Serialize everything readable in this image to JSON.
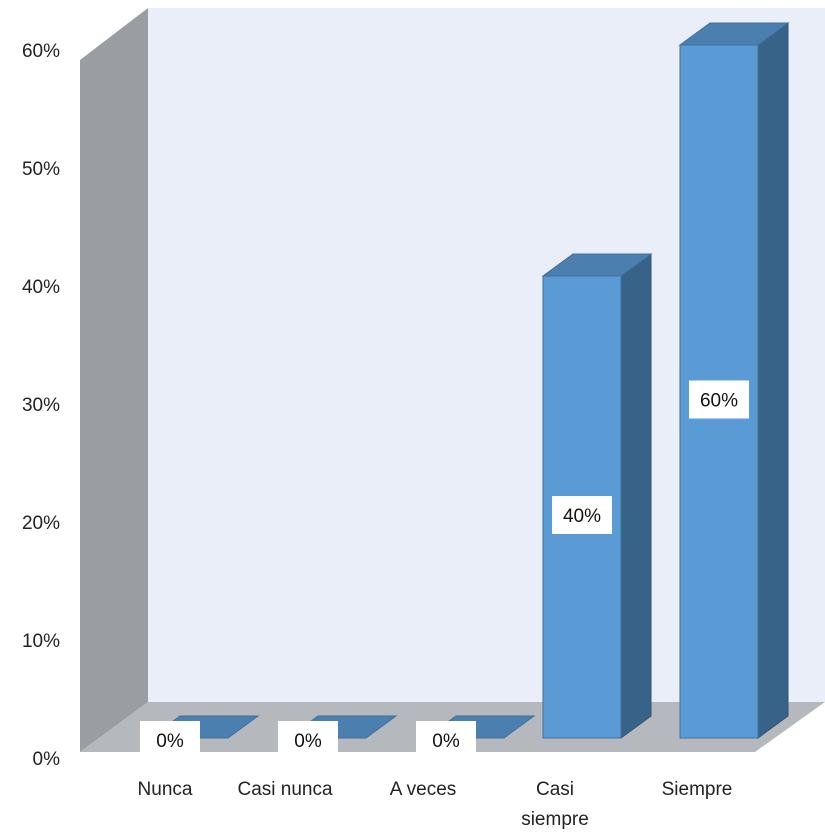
{
  "chart_data": {
    "type": "bar",
    "style": "3d-column",
    "categories": [
      "Nunca",
      "Casi nunca",
      "A veces",
      "Casi siempre",
      "Siempre"
    ],
    "category_lines": [
      [
        "Nunca"
      ],
      [
        "Casi nunca"
      ],
      [
        "A veces"
      ],
      [
        "Casi",
        "siempre"
      ],
      [
        "Siempre"
      ]
    ],
    "values": [
      0,
      0,
      0,
      40,
      60
    ],
    "data_labels": [
      "0%",
      "0%",
      "0%",
      "40%",
      "60%"
    ],
    "y_ticks": [
      "0%",
      "10%",
      "20%",
      "30%",
      "40%",
      "50%",
      "60%"
    ],
    "ylim": [
      0,
      60
    ],
    "grid": false,
    "legend": "none",
    "title": "",
    "xlabel": "",
    "ylabel": "",
    "colors": {
      "bar_front": "#5b9bd5",
      "bar_side": "#386388",
      "bar_top": "#4a7fb0",
      "back_wall": "#eaeef8",
      "side_wall": "#9a9ea3",
      "floor": "#b5b8bd"
    }
  }
}
